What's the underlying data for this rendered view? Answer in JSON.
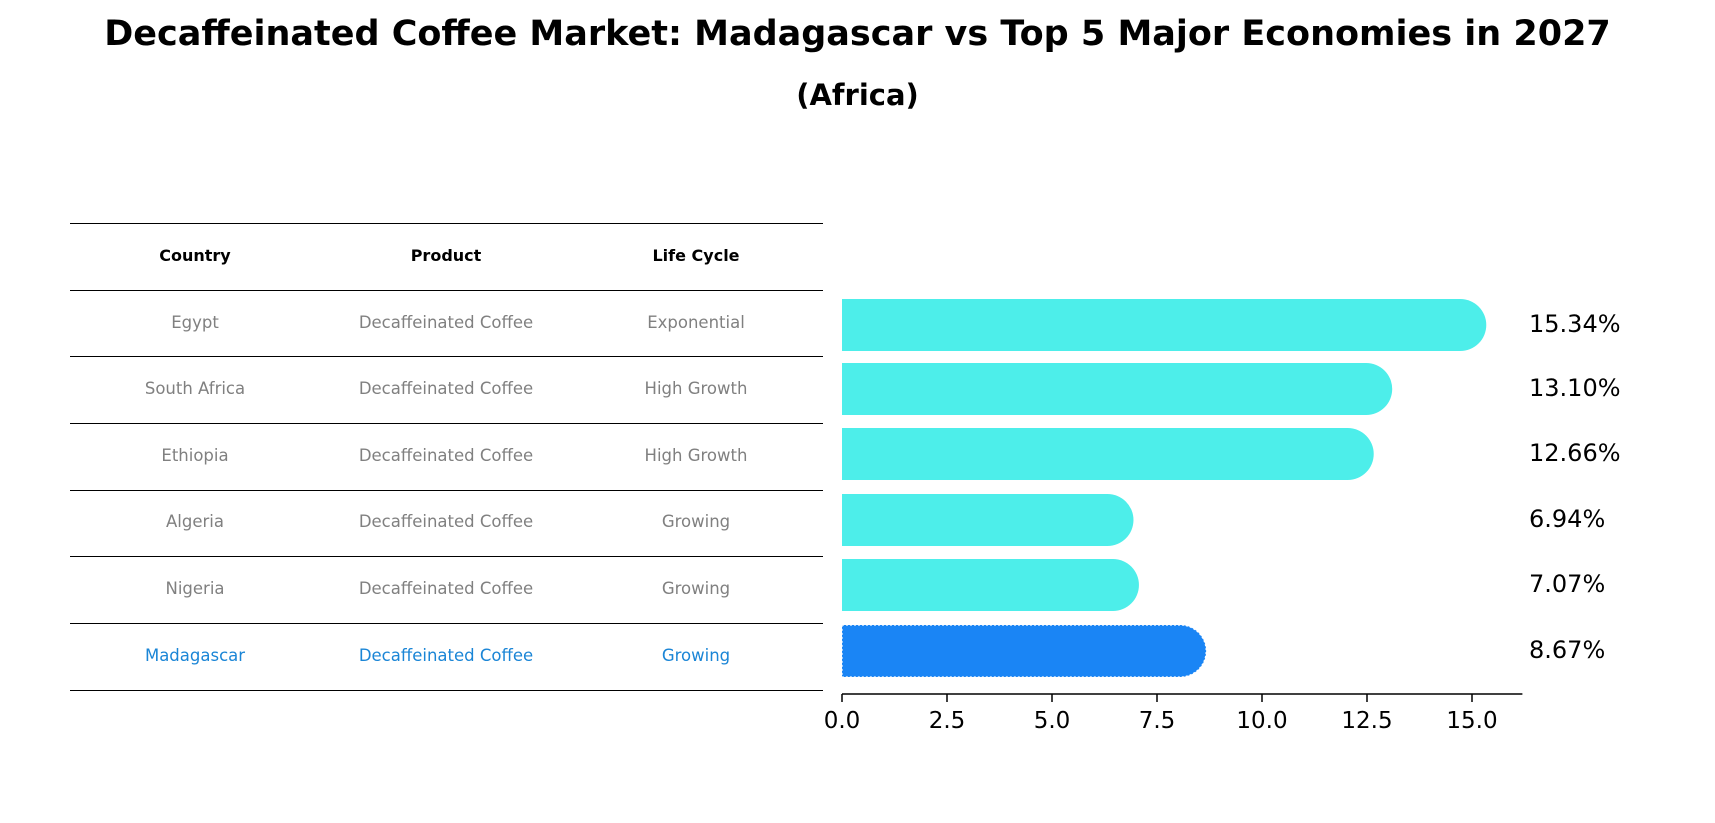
{
  "title": "Decaffeinated Coffee Market: Madagascar vs Top 5 Major Economies in 2027",
  "subtitle": "(Africa)",
  "colors": {
    "default_bar": "#4DEEEA",
    "highlight_bar": "#1A85F5",
    "highlight_text": "#1A85D6",
    "muted_text": "#808080"
  },
  "table": {
    "headers": [
      "Country",
      "Product",
      "Life Cycle"
    ],
    "rows": [
      {
        "country": "Egypt",
        "product": "Decaffeinated Coffee",
        "life_cycle": "Exponential",
        "highlight": false
      },
      {
        "country": "South Africa",
        "product": "Decaffeinated Coffee",
        "life_cycle": "High Growth",
        "highlight": false
      },
      {
        "country": "Ethiopia",
        "product": "Decaffeinated Coffee",
        "life_cycle": "High Growth",
        "highlight": false
      },
      {
        "country": "Algeria",
        "product": "Decaffeinated Coffee",
        "life_cycle": "Growing",
        "highlight": false
      },
      {
        "country": "Nigeria",
        "product": "Decaffeinated Coffee",
        "life_cycle": "Growing",
        "highlight": false
      },
      {
        "country": "Madagascar",
        "product": "Decaffeinated Coffee",
        "life_cycle": "Growing",
        "highlight": true
      }
    ]
  },
  "chart_data": {
    "type": "bar",
    "orientation": "horizontal",
    "categories": [
      "Egypt",
      "South Africa",
      "Ethiopia",
      "Algeria",
      "Nigeria",
      "Madagascar"
    ],
    "values": [
      15.34,
      13.1,
      12.66,
      6.94,
      7.07,
      8.67
    ],
    "value_labels": [
      "15.34%",
      "13.10%",
      "12.66%",
      "6.94%",
      "7.07%",
      "8.67%"
    ],
    "highlight_index": 5,
    "xlim": [
      0,
      16.2
    ],
    "xticks": [
      0.0,
      2.5,
      5.0,
      7.5,
      10.0,
      12.5,
      15.0
    ],
    "xtick_labels": [
      "0.0",
      "2.5",
      "5.0",
      "7.5",
      "10.0",
      "12.5",
      "15.0"
    ],
    "xlabel": "",
    "ylabel": "",
    "grid": false
  }
}
